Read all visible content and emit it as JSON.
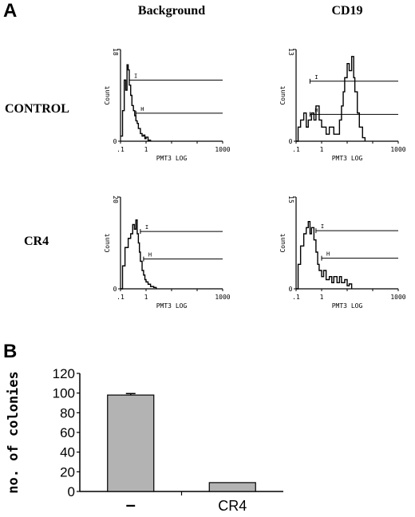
{
  "panel_a": {
    "letter": "A",
    "column_titles": [
      "Background",
      "CD19"
    ],
    "row_labels": [
      "CONTROL",
      "CR4"
    ],
    "histogram_texts": {
      "y_label": "Count",
      "x_label": "PMT3 LOG",
      "x_ticks": [
        ".1",
        "1",
        "1000"
      ],
      "gate_labels": [
        "I",
        "H"
      ]
    }
  },
  "panel_b": {
    "letter": "B"
  },
  "chart_data": [
    {
      "type": "line",
      "panel": "A",
      "column": "Background",
      "row": "CONTROL",
      "xlabel": "PMT3 LOG",
      "ylabel": "Count",
      "xscale": "log",
      "xlim": [
        0.1,
        1000
      ],
      "ylim": [
        0,
        18
      ],
      "x_ticks": [
        ".1",
        "1",
        "1000"
      ],
      "y_ticks": [
        "0",
        "18"
      ],
      "x": [
        0.1,
        0.12,
        0.14,
        0.16,
        0.18,
        0.2,
        0.22,
        0.25,
        0.28,
        0.32,
        0.36,
        0.4,
        0.45,
        0.5,
        0.6,
        0.7,
        0.8,
        0.9,
        1.0,
        1.2,
        1.5
      ],
      "y": [
        1,
        6,
        12,
        10,
        15,
        14,
        11,
        9,
        7,
        6,
        5,
        4,
        3.5,
        2.5,
        1.5,
        1.0,
        1.2,
        0.5,
        0.8,
        0.2,
        0
      ],
      "gates": [
        {
          "label": "I",
          "level": 12,
          "from": 0.22,
          "to": 1000
        },
        {
          "label": "H",
          "level": 5.5,
          "from": 0.4,
          "to": 1000
        }
      ]
    },
    {
      "type": "line",
      "panel": "A",
      "column": "CD19",
      "row": "CONTROL",
      "xlabel": "PMT3 LOG",
      "ylabel": "Count",
      "xscale": "log",
      "xlim": [
        0.1,
        1000
      ],
      "ylim": [
        0,
        13
      ],
      "x_ticks": [
        ".1",
        "1",
        "1000"
      ],
      "y_ticks": [
        "0",
        "13"
      ],
      "x": [
        0.1,
        0.12,
        0.15,
        0.2,
        0.25,
        0.3,
        0.4,
        0.5,
        0.6,
        0.8,
        1.0,
        1.5,
        2,
        3,
        4,
        5,
        6,
        7,
        8,
        10,
        12,
        15,
        18,
        20,
        25,
        30,
        40,
        50
      ],
      "y": [
        0,
        2,
        3,
        4,
        2,
        3,
        4,
        3,
        5,
        3,
        2,
        1,
        2,
        1,
        1,
        3,
        5,
        7,
        9,
        11,
        10,
        12,
        9,
        7,
        4,
        2,
        0.5,
        0
      ],
      "gates": [
        {
          "label": "I",
          "level": 8.5,
          "from": 0.35,
          "to": 1000
        },
        {
          "label": "H",
          "level": 3.8,
          "from": 0.35,
          "to": 1000
        }
      ]
    },
    {
      "type": "line",
      "panel": "A",
      "column": "Background",
      "row": "CR4",
      "xlabel": "PMT3 LOG",
      "ylabel": "Count",
      "xscale": "log",
      "xlim": [
        0.1,
        1000
      ],
      "ylim": [
        0,
        20
      ],
      "x_ticks": [
        ".1",
        "1",
        "1000"
      ],
      "y_ticks": [
        "0",
        "20"
      ],
      "x": [
        0.1,
        0.12,
        0.15,
        0.2,
        0.25,
        0.3,
        0.35,
        0.4,
        0.45,
        0.5,
        0.55,
        0.6,
        0.7,
        0.8,
        0.9,
        1.0,
        1.2,
        1.5,
        2,
        2.5
      ],
      "y": [
        0,
        5,
        9,
        11,
        12,
        14,
        13,
        15,
        12,
        10,
        8,
        6,
        4,
        3,
        2,
        1.5,
        1,
        0.5,
        0.3,
        0
      ],
      "gates": [
        {
          "label": "I",
          "level": 12.5,
          "from": 0.6,
          "to": 1000
        },
        {
          "label": "H",
          "level": 6.5,
          "from": 0.8,
          "to": 1000
        }
      ]
    },
    {
      "type": "line",
      "panel": "A",
      "column": "CD19",
      "row": "CR4",
      "xlabel": "PMT3 LOG",
      "ylabel": "Count",
      "xscale": "log",
      "xlim": [
        0.1,
        1000
      ],
      "ylim": [
        0,
        15
      ],
      "x_ticks": [
        ".1",
        "1",
        "1000"
      ],
      "y_ticks": [
        "0",
        "15"
      ],
      "x": [
        0.1,
        0.12,
        0.15,
        0.2,
        0.25,
        0.3,
        0.35,
        0.4,
        0.5,
        0.6,
        0.7,
        0.8,
        1.0,
        1.2,
        1.5,
        2,
        2.5,
        3,
        4,
        5,
        6,
        8,
        10,
        12,
        15
      ],
      "y": [
        0,
        4,
        7,
        9,
        10,
        11,
        9,
        10,
        8,
        6,
        4,
        3,
        2,
        3,
        1.5,
        2,
        1,
        2,
        1,
        2,
        1,
        1.5,
        0.5,
        0.8,
        0
      ],
      "gates": [
        {
          "label": "I",
          "level": 9.5,
          "from": 0.6,
          "to": 1000
        },
        {
          "label": "H",
          "level": 5.0,
          "from": 1.0,
          "to": 1000
        }
      ]
    },
    {
      "type": "bar",
      "panel": "B",
      "categories": [
        "–",
        "CR4"
      ],
      "values": [
        98,
        9
      ],
      "errors": [
        1.5,
        0
      ],
      "ylabel": "no. of colonies",
      "ylim": [
        0,
        120
      ],
      "y_ticks": [
        0,
        20,
        40,
        60,
        80,
        100,
        120
      ],
      "bar_color": "#b3b3b3",
      "grid": false
    }
  ]
}
